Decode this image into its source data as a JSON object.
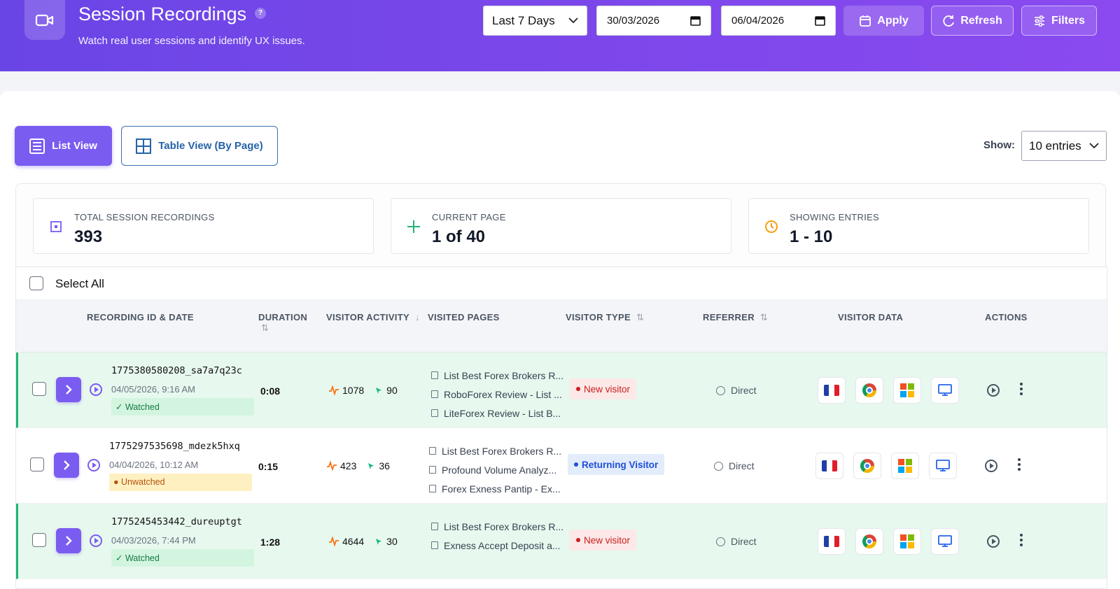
{
  "header": {
    "title": "Session Recordings",
    "help": "?",
    "subtitle": "Watch real user sessions and identify UX issues.",
    "range_select": "Last 7 Days",
    "date_from": "30/03/2026",
    "date_to": "06/04/2026",
    "apply_label": "Apply",
    "refresh_label": "Refresh",
    "filters_label": "Filters"
  },
  "views": {
    "list_label": "List View",
    "table_label": "Table View (By Page)"
  },
  "show": {
    "label": "Show:",
    "value": "10 entries"
  },
  "stats": [
    {
      "label": "Total Session Recordings",
      "value": "393",
      "icon": "record-icon",
      "color": "#7b5cf0"
    },
    {
      "label": "Current Page",
      "value": "1 of 40",
      "icon": "plus-icon",
      "color": "#22b573"
    },
    {
      "label": "Showing Entries",
      "value": "1 - 10",
      "icon": "clock-icon",
      "color": "#f59e0b"
    }
  ],
  "select_all_label": "Select All",
  "columns": {
    "recording": "Recording ID & Date",
    "duration": "Duration",
    "activity": "Visitor Activity",
    "pages": "Visited Pages",
    "type": "Visitor Type",
    "referrer": "Referrer",
    "visitor_data": "Visitor Data",
    "actions": "Actions"
  },
  "rows": [
    {
      "id": "1775380580208_sa7a7q23c",
      "date": "04/05/2026, 9:16 AM",
      "status": "✓ Watched",
      "duration": "0:08",
      "activity": "1078",
      "clicks": "90",
      "pages": [
        "List Best Forex Brokers R...",
        "RoboForex Review - List ...",
        "LiteForex Review - List B..."
      ],
      "visitor_type": "New visitor",
      "referrer": "Direct"
    },
    {
      "id": "1775297535698_mdezk5hxq",
      "date": "04/04/2026, 10:12 AM",
      "status": "● Unwatched",
      "duration": "0:15",
      "activity": "423",
      "clicks": "36",
      "pages": [
        "List Best Forex Brokers R...",
        "Profound Volume Analyz...",
        "Forex Exness Pantip - Ex..."
      ],
      "visitor_type": "Returning Visitor",
      "referrer": "Direct"
    },
    {
      "id": "1775245453442_dureuptgt",
      "date": "04/03/2026, 7:44 PM",
      "status": "✓ Watched",
      "duration": "1:28",
      "activity": "4644",
      "clicks": "30",
      "pages": [
        "List Best Forex Brokers R...",
        "Exness Accept Deposit a..."
      ],
      "visitor_type": "New visitor",
      "referrer": "Direct"
    }
  ],
  "colors": {
    "accent": "#7b5cf0",
    "watched_bg": "#e7f8ee",
    "watched_border": "#22b573",
    "unwatched_badge": "#fff0c2",
    "activity_icon": "#f97316",
    "click_icon": "#10b981"
  }
}
